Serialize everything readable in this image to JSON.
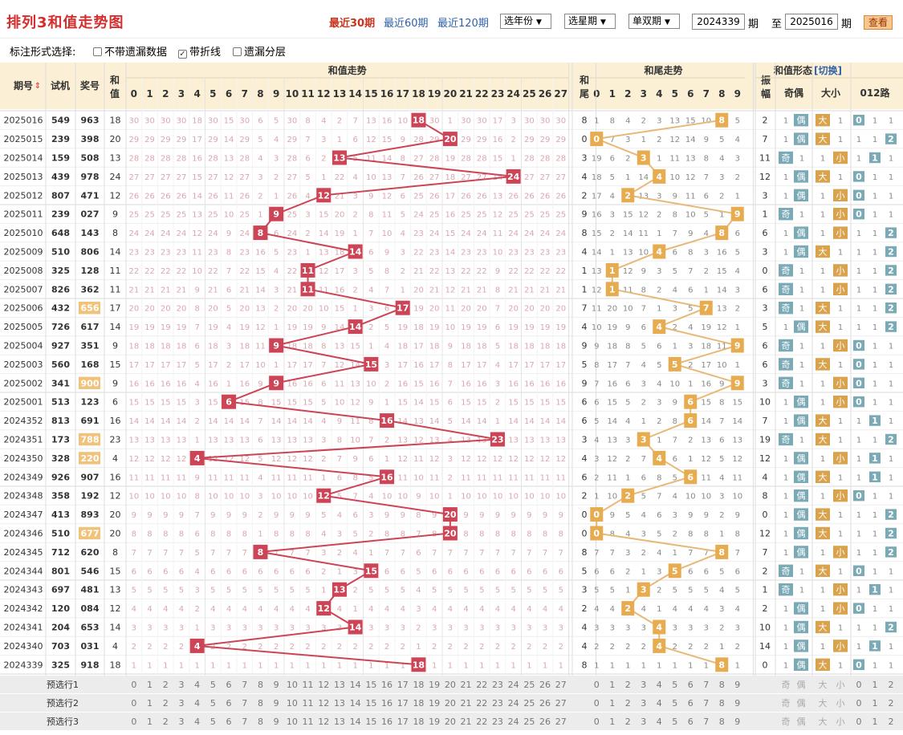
{
  "app": {
    "title": "排列3和值走势图"
  },
  "toolbar": {
    "recent": [
      "最近30期",
      "最近60期",
      "最近120期"
    ],
    "active_recent": 0,
    "year_select": "选年份",
    "week_select": "选星期",
    "parity_select": "单双期",
    "from_issue": "2024339",
    "to_issue": "2025016",
    "qi_label": "期",
    "to_label": "至",
    "query_button": "查看"
  },
  "options": {
    "label": "标注形式选择:",
    "items": [
      {
        "label": "不带遗漏数据",
        "checked": false
      },
      {
        "label": "带折线",
        "checked": true
      },
      {
        "label": "遗漏分层",
        "checked": false
      }
    ]
  },
  "table": {
    "headers": {
      "period": "期号",
      "test": "试机",
      "prize": "奖号",
      "sum_col": "和值",
      "sum_trend": "和值走势",
      "tail_col": "和尾",
      "tail_trend": "和尾走势",
      "shape": "和值形态",
      "switch": "[切换]",
      "amp": "振幅",
      "oe": "奇偶",
      "bs": "大小",
      "r012": "012路"
    },
    "sort_icon": "sort-icon",
    "rows": [
      {
        "p": "2025016",
        "t": "549",
        "w": "963",
        "s": 18
      },
      {
        "p": "2025015",
        "t": "239",
        "w": "398",
        "s": 20
      },
      {
        "p": "2025014",
        "t": "159",
        "w": "508",
        "s": 13
      },
      {
        "p": "2025013",
        "t": "439",
        "w": "978",
        "s": 24
      },
      {
        "p": "2025012",
        "t": "807",
        "w": "471",
        "s": 12
      },
      {
        "p": "2025011",
        "t": "239",
        "w": "027",
        "s": 9
      },
      {
        "p": "2025010",
        "t": "648",
        "w": "143",
        "s": 8
      },
      {
        "p": "2025009",
        "t": "510",
        "w": "806",
        "s": 14
      },
      {
        "p": "2025008",
        "t": "325",
        "w": "128",
        "s": 11
      },
      {
        "p": "2025007",
        "t": "826",
        "w": "362",
        "s": 11
      },
      {
        "p": "2025006",
        "t": "432",
        "w": "656",
        "s": 17,
        "h": true
      },
      {
        "p": "2025005",
        "t": "726",
        "w": "617",
        "s": 14
      },
      {
        "p": "2025004",
        "t": "927",
        "w": "351",
        "s": 9
      },
      {
        "p": "2025003",
        "t": "560",
        "w": "168",
        "s": 15
      },
      {
        "p": "2025002",
        "t": "341",
        "w": "900",
        "s": 9,
        "h": true
      },
      {
        "p": "2025001",
        "t": "513",
        "w": "123",
        "s": 6
      },
      {
        "p": "2024352",
        "t": "813",
        "w": "691",
        "s": 16
      },
      {
        "p": "2024351",
        "t": "173",
        "w": "788",
        "s": 23,
        "h": true
      },
      {
        "p": "2024350",
        "t": "328",
        "w": "220",
        "s": 4,
        "h": true
      },
      {
        "p": "2024349",
        "t": "926",
        "w": "907",
        "s": 16
      },
      {
        "p": "2024348",
        "t": "358",
        "w": "192",
        "s": 12
      },
      {
        "p": "2024347",
        "t": "413",
        "w": "893",
        "s": 20
      },
      {
        "p": "2024346",
        "t": "510",
        "w": "677",
        "s": 20,
        "h": true
      },
      {
        "p": "2024345",
        "t": "712",
        "w": "620",
        "s": 8
      },
      {
        "p": "2024344",
        "t": "801",
        "w": "546",
        "s": 15
      },
      {
        "p": "2024343",
        "t": "697",
        "w": "481",
        "s": 13
      },
      {
        "p": "2024342",
        "t": "120",
        "w": "084",
        "s": 12
      },
      {
        "p": "2024341",
        "t": "204",
        "w": "653",
        "s": 14
      },
      {
        "p": "2024340",
        "t": "703",
        "w": "031",
        "s": 4
      },
      {
        "p": "2024339",
        "t": "325",
        "w": "918",
        "s": 18
      }
    ],
    "shape_labels": {
      "odd": "奇",
      "even": "偶",
      "big": "大",
      "small": "小"
    },
    "preselect": [
      "预选行1",
      "预选行2",
      "预选行3"
    ],
    "sum_numbers": [
      "0",
      "1",
      "2",
      "3",
      "4",
      "5",
      "6",
      "7",
      "8",
      "9",
      "10",
      "11",
      "12",
      "13",
      "14",
      "15",
      "16",
      "17",
      "18",
      "19",
      "20",
      "21",
      "22",
      "23",
      "24",
      "25",
      "26",
      "27"
    ],
    "tail_numbers": [
      "0",
      "1",
      "2",
      "3",
      "4",
      "5",
      "6",
      "7",
      "8",
      "9"
    ],
    "r012_numbers": [
      "0",
      "1",
      "2"
    ]
  },
  "colors": {
    "accent": "#d52e2e",
    "header_bg": "#fbefd5",
    "sum_ball": "#cc4455",
    "tail_ball": "#e8ac50",
    "sum_line": "#cc4455",
    "tail_line": "#e8b878",
    "odd_box": "#7aaab6",
    "big_box": "#d9a24c",
    "r012_box": "#7aaab6",
    "miss_text": "#d9a6ae",
    "pre_bg": "#ececec"
  }
}
